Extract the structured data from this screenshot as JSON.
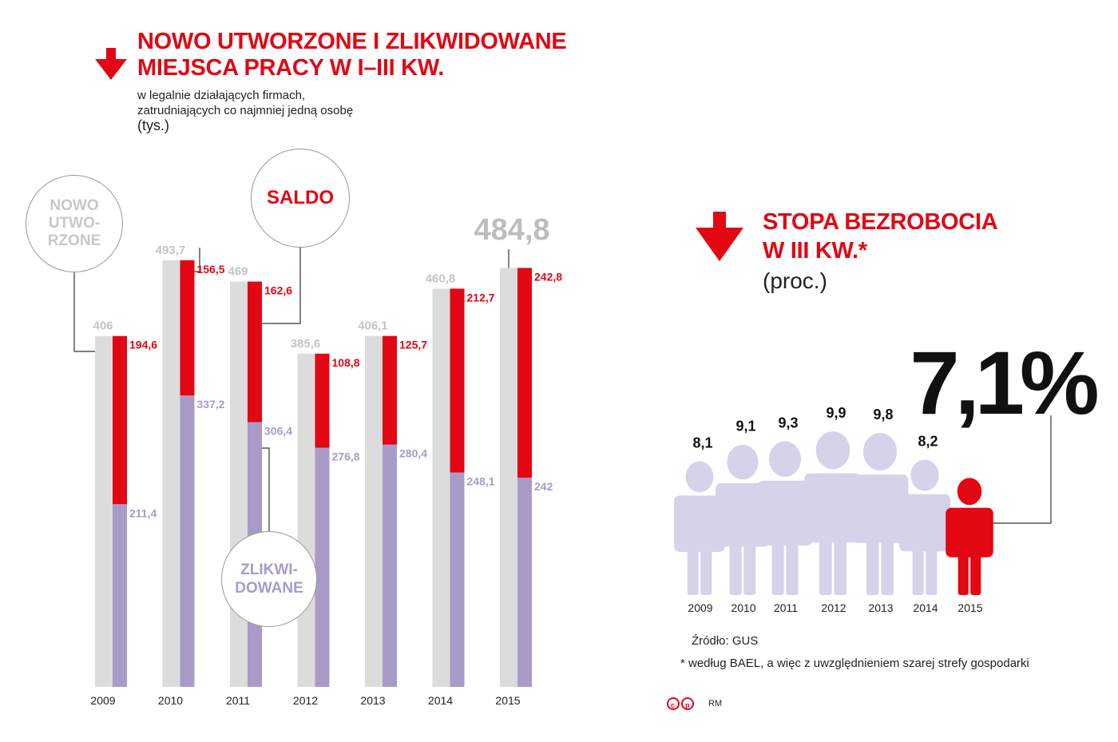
{
  "chart_data": [
    {
      "type": "bar",
      "title": "NOWO UTWORZONE I ZLIKWIDOWANE\nMIEJSCA PRACY W I–III KW.",
      "subtitle": "w legalnie działających firmach,\nzatrudniających co najmniej jedną osobę",
      "unit": "(tys.)",
      "categories": [
        "2009",
        "2010",
        "2011",
        "2012",
        "2013",
        "2014",
        "2015"
      ],
      "series": [
        {
          "name": "NOWO\nUTWO-\nRZONE",
          "color": "#dcdcdc",
          "values": [
            406,
            493.7,
            469,
            385.6,
            406.1,
            460.8,
            484.8
          ],
          "value_labels": [
            "406",
            "493,7",
            "469",
            "385,6",
            "406,1",
            "460,8",
            "484,8"
          ]
        },
        {
          "name": "ZLIKWI-\nDOWANE",
          "color": "#a89bc8",
          "values": [
            211.4,
            337.2,
            306.4,
            276.8,
            280.4,
            248.1,
            242
          ],
          "value_labels": [
            "211,4",
            "337,2",
            "306,4",
            "276,8",
            "280,4",
            "248,1",
            "242"
          ]
        },
        {
          "name": "SALDO",
          "color": "#e30613",
          "values": [
            194.6,
            156.5,
            162.6,
            108.8,
            125.7,
            212.7,
            242.8
          ],
          "value_labels": [
            "194,6",
            "156,5",
            "162,6",
            "108,8",
            "125,7",
            "212,7",
            "242,8"
          ]
        }
      ]
    },
    {
      "type": "pictogram",
      "title": "STOPA BEZROBOCIA\nW III KW.*",
      "unit": "(proc.)",
      "categories": [
        "2009",
        "2010",
        "2011",
        "2012",
        "2013",
        "2014",
        "2015"
      ],
      "values": [
        8.1,
        9.1,
        9.3,
        9.9,
        9.8,
        8.2,
        7.1
      ],
      "value_labels": [
        "8,1",
        "9,1",
        "9,3",
        "9,9",
        "9,8",
        "8,2",
        "7,1%"
      ],
      "colors": [
        "#d6d2ea",
        "#d6d2ea",
        "#d6d2ea",
        "#d6d2ea",
        "#d6d2ea",
        "#d6d2ea",
        "#e30613"
      ]
    }
  ],
  "source": "Źródło: GUS",
  "footnote": "* według BAEL, a więc z uwzględnieniem szarej strefy gospodarki",
  "credit": "RM"
}
